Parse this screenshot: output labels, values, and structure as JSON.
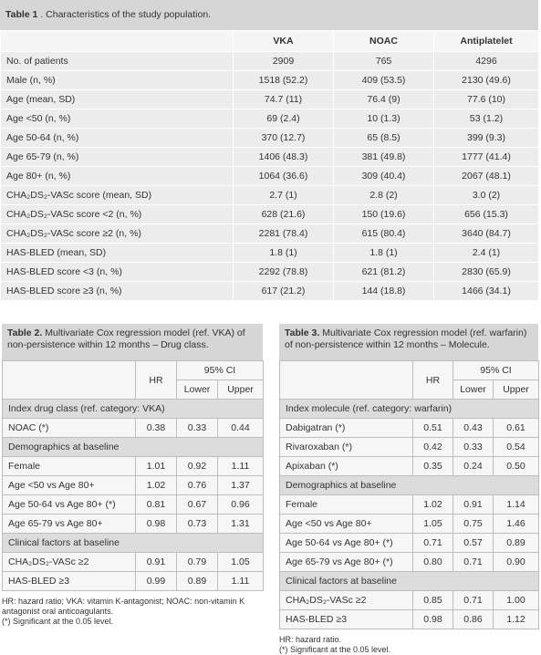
{
  "table1": {
    "title_label": "Table 1",
    "title": ". Characteristics of the study population.",
    "columns": [
      "VKA",
      "NOAC",
      "Antiplatelet"
    ],
    "rows": [
      [
        "No. of patients",
        "2909",
        "765",
        "4296"
      ],
      [
        "Male (n, %)",
        "1518 (52.2)",
        "409 (53.5)",
        "2130 (49.6)"
      ],
      [
        "Age (mean, SD)",
        "74.7 (11)",
        "76.4 (9)",
        "77.6 (10)"
      ],
      [
        "Age <50 (n, %)",
        "69 (2.4)",
        "10 (1.3)",
        "53 (1.2)"
      ],
      [
        "Age 50-64 (n, %)",
        "370 (12.7)",
        "65 (8.5)",
        "399 (9.3)"
      ],
      [
        "Age 65-79 (n, %)",
        "1406 (48.3)",
        "381 (49.8)",
        "1777 (41.4)"
      ],
      [
        "Age 80+ (n, %)",
        "1064 (36.6)",
        "309 (40.4)",
        "2067 (48.1)"
      ],
      [
        "CHA₂DS₂-VASc score (mean, SD)",
        "2.7 (1)",
        "2.8 (2)",
        "3.0 (2)"
      ],
      [
        "CHA₂DS₂-VASc score <2 (n, %)",
        "628 (21.6)",
        "150 (19.6)",
        "656 (15.3)"
      ],
      [
        "CHA₂DS₂-VASc score ≥2 (n, %)",
        "2281 (78.4)",
        "615 (80.4)",
        "3640 (84.7)"
      ],
      [
        "HAS-BLED (mean, SD)",
        "1.8 (1)",
        "1.8 (1)",
        "2.4 (1)"
      ],
      [
        "HAS-BLED score <3 (n, %)",
        "2292 (78.8)",
        "621 (81.2)",
        "2830 (65.9)"
      ],
      [
        "HAS-BLED score ≥3 (n, %)",
        "617 (21.2)",
        "144 (18.8)",
        "1466 (34.1)"
      ]
    ]
  },
  "table2": {
    "title_label": "Table 2.",
    "title": "Multivariate Cox regression model (ref. VKA) of non-persistence within 12 months – Drug class.",
    "columns": {
      "hr": "HR",
      "ci": "95% CI",
      "lower": "Lower",
      "upper": "Upper"
    },
    "rows": [
      {
        "section": "Index drug class (ref. category: VKA)"
      },
      [
        "NOAC (*)",
        "0.38",
        "0.33",
        "0.44"
      ],
      {
        "section": "Demographics at baseline"
      },
      [
        "Female",
        "1.01",
        "0.92",
        "1.11"
      ],
      [
        "Age <50 vs Age 80+",
        "1.02",
        "0.76",
        "1.37"
      ],
      [
        "Age 50-64 vs Age 80+ (*)",
        "0.81",
        "0.67",
        "0.96"
      ],
      [
        "Age 65-79 vs Age 80+",
        "0.98",
        "0.73",
        "1.31"
      ],
      {
        "section": "Clinical factors at baseline"
      },
      [
        "CHA₂DS₂-VASc ≥2",
        "0.91",
        "0.79",
        "1.05"
      ],
      [
        "HAS-BLED ≥3",
        "0.99",
        "0.89",
        "1.11"
      ]
    ],
    "footnotes": [
      "HR: hazard ratio; VKA: vitamin K-antagonist; NOAC: non-vitamin K antagonist oral anticoagulants.",
      "(*) Significant at the 0.05 level."
    ]
  },
  "table3": {
    "title_label": "Table 3.",
    "title": "Multivariate Cox regression model (ref. warfarin) of non-persistence within 12 months – Molecule.",
    "columns": {
      "hr": "HR",
      "ci": "95% CI",
      "lower": "Lower",
      "upper": "Upper"
    },
    "rows": [
      {
        "section": "Index molecule (ref. category: warfarin)"
      },
      [
        "Dabigatran (*)",
        "0.51",
        "0.43",
        "0.61"
      ],
      [
        "Rivaroxaban (*)",
        "0.42",
        "0.33",
        "0.54"
      ],
      [
        "Apixaban (*)",
        "0.35",
        "0.24",
        "0.50"
      ],
      {
        "section": "Demographics at baseline"
      },
      [
        "Female",
        "1.02",
        "0.91",
        "1.14"
      ],
      [
        "Age <50 vs Age 80+",
        "1.05",
        "0.75",
        "1.46"
      ],
      [
        "Age 50-64 vs Age 80+ (*)",
        "0.71",
        "0.57",
        "0.89"
      ],
      [
        "Age 65-79 vs Age 80+ (*)",
        "0.80",
        "0.71",
        "0.90"
      ],
      {
        "section": "Clinical factors at baseline"
      },
      [
        "CHA₂DS₂-VASc ≥2",
        "0.85",
        "0.71",
        "1.00"
      ],
      [
        "HAS-BLED ≥3",
        "0.98",
        "0.86",
        "1.12"
      ]
    ],
    "footnotes": [
      "HR: hazard ratio.",
      "(*) Significant at the 0.05 level."
    ]
  }
}
